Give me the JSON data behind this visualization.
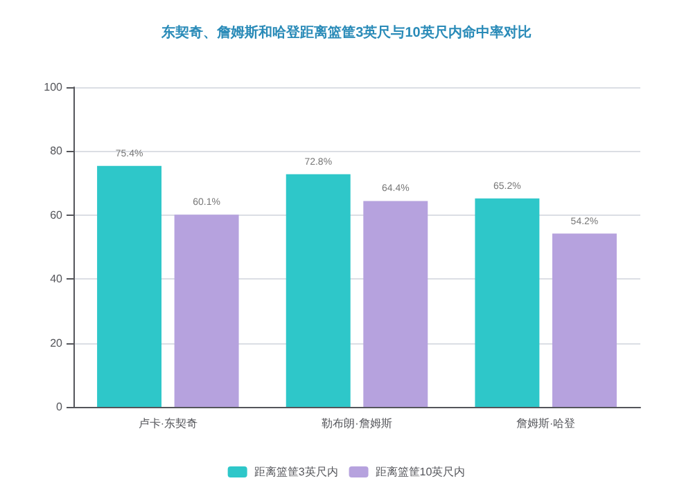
{
  "chart_data": {
    "type": "bar",
    "title": "东契奇、詹姆斯和哈登距离篮筐3英尺与10英尺内命中率对比",
    "categories": [
      "卢卡·东契奇",
      "勒布朗·詹姆斯",
      "詹姆斯·哈登"
    ],
    "series": [
      {
        "name": "距离篮筐3英尺内",
        "color": "#2ec7c9",
        "values": [
          75.4,
          72.8,
          65.2
        ],
        "value_labels": [
          "75.4%",
          "72.8%",
          "65.2%"
        ]
      },
      {
        "name": "距离篮筐10英尺内",
        "color": "#b6a2de",
        "values": [
          60.1,
          64.4,
          54.2
        ],
        "value_labels": [
          "60.1%",
          "64.4%",
          "54.2%"
        ]
      }
    ],
    "ylim": [
      0,
      100
    ],
    "yticks": [
      0,
      20,
      40,
      60,
      80,
      100
    ],
    "grid": "y",
    "legend": "bottom"
  }
}
